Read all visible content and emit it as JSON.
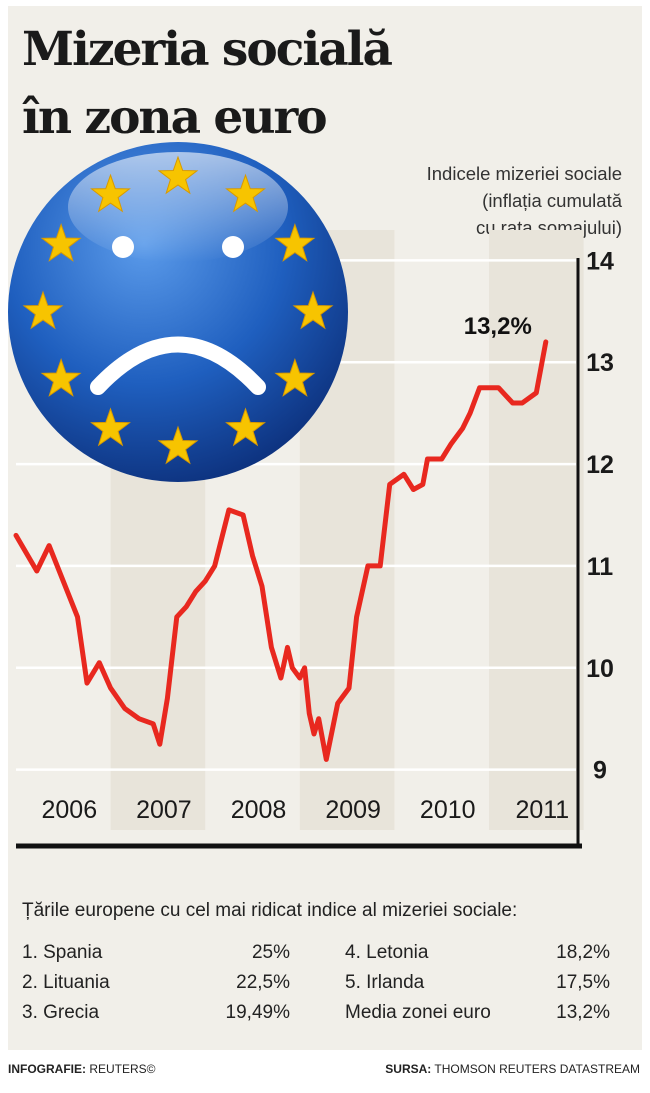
{
  "header": {
    "title_line1": "Mizeria socială",
    "title_line2": "în zona euro",
    "subtitle_lines": [
      "Indicele mizeriei sociale",
      "(inflația cumulată",
      "cu rata șomajului)"
    ]
  },
  "colors": {
    "line": "#e8281f",
    "eu_blue": "#1f5fbf",
    "star": "#f7c400",
    "axis": "#111111",
    "grid": "#ffffff",
    "bg": "#f1efe9"
  },
  "chart_data": {
    "type": "line",
    "title": "Indicele mizeriei sociale (inflația cumulată cu rata șomajului)",
    "x_range": [
      2006.0,
      2011.75
    ],
    "ylim": [
      8.8,
      14.2
    ],
    "y_ticks": [
      "9",
      "10",
      "11",
      "12",
      "13",
      "14"
    ],
    "y_axis_side": "right",
    "x_tick_labels": [
      "2006",
      "2007",
      "2008",
      "2009",
      "2010",
      "2011"
    ],
    "grid": "horizontal",
    "annotation": "13,2%",
    "series": [
      {
        "x": [
          2006.0,
          2006.22,
          2006.35,
          2006.65,
          2006.75,
          2006.88,
          2007.0,
          2007.15,
          2007.3,
          2007.45,
          2007.52,
          2007.6,
          2007.7,
          2007.8,
          2007.9,
          2008.0,
          2008.1,
          2008.25,
          2008.4,
          2008.5,
          2008.6,
          2008.7,
          2008.8,
          2008.87,
          2008.92,
          2009.0,
          2009.05,
          2009.1,
          2009.15,
          2009.2,
          2009.28,
          2009.4,
          2009.52,
          2009.6,
          2009.72,
          2009.85,
          2009.95,
          2010.1,
          2010.2,
          2010.3,
          2010.35,
          2010.5,
          2010.6,
          2010.72,
          2010.8,
          2010.9,
          2011.0,
          2011.1,
          2011.25,
          2011.35,
          2011.5,
          2011.6
        ],
        "y": [
          11.3,
          10.95,
          11.2,
          10.5,
          9.85,
          10.05,
          9.8,
          9.6,
          9.5,
          9.45,
          9.25,
          9.7,
          10.5,
          10.6,
          10.75,
          10.85,
          11.0,
          11.55,
          11.5,
          11.1,
          10.8,
          10.2,
          9.9,
          10.2,
          10.0,
          9.9,
          10.0,
          9.55,
          9.35,
          9.5,
          9.1,
          9.65,
          9.8,
          10.5,
          11.0,
          11.0,
          11.8,
          11.9,
          11.75,
          11.8,
          12.05,
          12.05,
          12.2,
          12.35,
          12.5,
          12.75,
          12.75,
          12.75,
          12.6,
          12.6,
          12.7,
          13.2
        ]
      }
    ]
  },
  "ranking": {
    "title": "Țările europene cu cel mai ridicat indice al mizeriei sociale:",
    "left": [
      {
        "name": "1. Spania",
        "value": "25%"
      },
      {
        "name": "2. Lituania",
        "value": "22,5%"
      },
      {
        "name": "3. Grecia",
        "value": "19,49%"
      }
    ],
    "right": [
      {
        "name": "4. Letonia",
        "value": "18,2%"
      },
      {
        "name": "5. Irlanda",
        "value": "17,5%"
      },
      {
        "name": "Media zonei euro",
        "value": "13,2%"
      }
    ]
  },
  "footer": {
    "left_label": "INFOGRAFIE:",
    "left_value": "REUTERS©",
    "right_label": "SURSA:",
    "right_value": "THOMSON REUTERS DATASTREAM"
  }
}
